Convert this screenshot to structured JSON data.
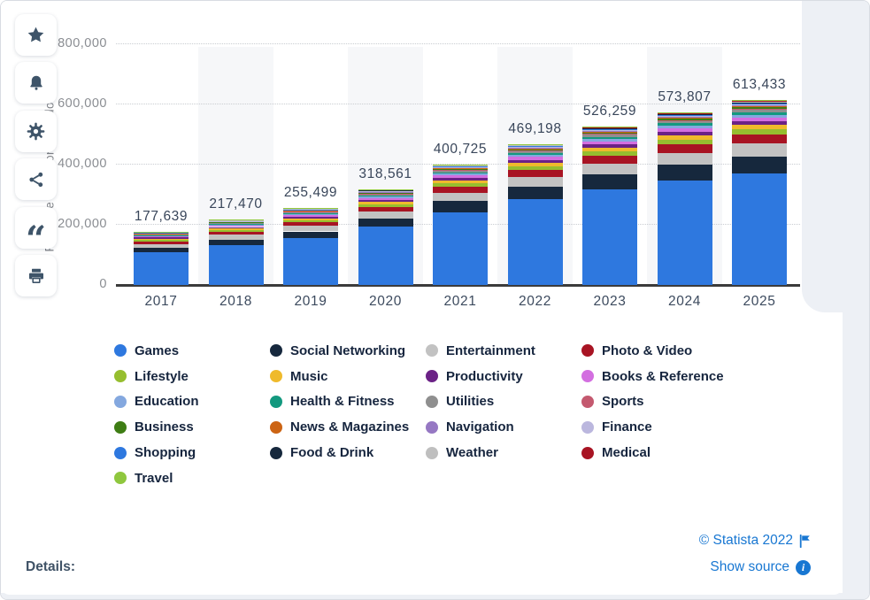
{
  "chart_data": {
    "type": "stacked-bar",
    "title": "",
    "xlabel": "",
    "ylabel": "Revenue in million U.S. dollars",
    "ylim": [
      0,
      800000
    ],
    "ytick_labels": [
      "0",
      "200,000",
      "400,000",
      "600,000",
      "800,000"
    ],
    "grid": "horizontal-dotted",
    "legend_position": "bottom",
    "categories": [
      "2017",
      "2018",
      "2019",
      "2020",
      "2021",
      "2022",
      "2023",
      "2024",
      "2025"
    ],
    "totals": [
      177639,
      217470,
      255499,
      318561,
      400725,
      469198,
      526259,
      573807,
      613433
    ],
    "total_labels": [
      "177,639",
      "217,470",
      "255,499",
      "318,561",
      "400,725",
      "469,198",
      "526,259",
      "573,807",
      "613,433"
    ],
    "series": [
      {
        "name": "Games",
        "color": "#2E78DF",
        "share_est": 0.61
      },
      {
        "name": "Social Networking",
        "color": "#16283D",
        "share_est": 0.092
      },
      {
        "name": "Entertainment",
        "color": "#C2C2C2",
        "share_est": 0.07
      },
      {
        "name": "Photo & Video",
        "color": "#A81423",
        "share_est": 0.05
      },
      {
        "name": "Lifestyle",
        "color": "#96BE2F",
        "share_est": 0.027
      },
      {
        "name": "Music",
        "color": "#EFBA2C",
        "share_est": 0.026
      },
      {
        "name": "Productivity",
        "color": "#6B2286",
        "share_est": 0.018
      },
      {
        "name": "Books & Reference",
        "color": "#D36FE0",
        "share_est": 0.021
      },
      {
        "name": "Education",
        "color": "#84A8DF",
        "share_est": 0.016
      },
      {
        "name": "Health & Fitness",
        "color": "#13997F",
        "share_est": 0.013
      },
      {
        "name": "Utilities",
        "color": "#8F8F8F",
        "share_est": 0.012
      },
      {
        "name": "Sports",
        "color": "#C4596F",
        "share_est": 0.008
      },
      {
        "name": "Business",
        "color": "#3E7D14",
        "share_est": 0.007
      },
      {
        "name": "News & Magazines",
        "color": "#CC6414",
        "share_est": 0.006
      },
      {
        "name": "Navigation",
        "color": "#9678C3",
        "share_est": 0.006
      },
      {
        "name": "Finance",
        "color": "#BBB7DE",
        "share_est": 0.005
      },
      {
        "name": "Shopping",
        "color": "#2E78DF",
        "share_est": 0.005
      },
      {
        "name": "Food & Drink",
        "color": "#16283D",
        "share_est": 0.005
      },
      {
        "name": "Weather",
        "color": "#BFBFBF",
        "share_est": 0.004
      },
      {
        "name": "Medical",
        "color": "#A81423",
        "share_est": 0.003
      },
      {
        "name": "Travel",
        "color": "#8FC73E",
        "share_est": 0.004
      }
    ],
    "note": "Per-category segment values are not labeled in the chart; share_est are visual estimates of each category's proportion of the yearly total, used to draw the stack segments."
  },
  "sidebar": {
    "buttons": [
      {
        "id": "favorite",
        "icon": "star"
      },
      {
        "id": "notifications",
        "icon": "bell"
      },
      {
        "id": "settings",
        "icon": "gear"
      },
      {
        "id": "share",
        "icon": "share"
      },
      {
        "id": "cite",
        "icon": "quote"
      },
      {
        "id": "print",
        "icon": "printer"
      }
    ]
  },
  "footer": {
    "details_label": "Details:",
    "copyright": "© Statista 2022",
    "show_source": "Show source"
  },
  "colors": {
    "link_blue": "#1877D2",
    "icon_slate": "#3E5469",
    "axis_line": "#3B3B3B",
    "band": "#F6F7F9",
    "rail_bg": "#EDF0F5"
  }
}
